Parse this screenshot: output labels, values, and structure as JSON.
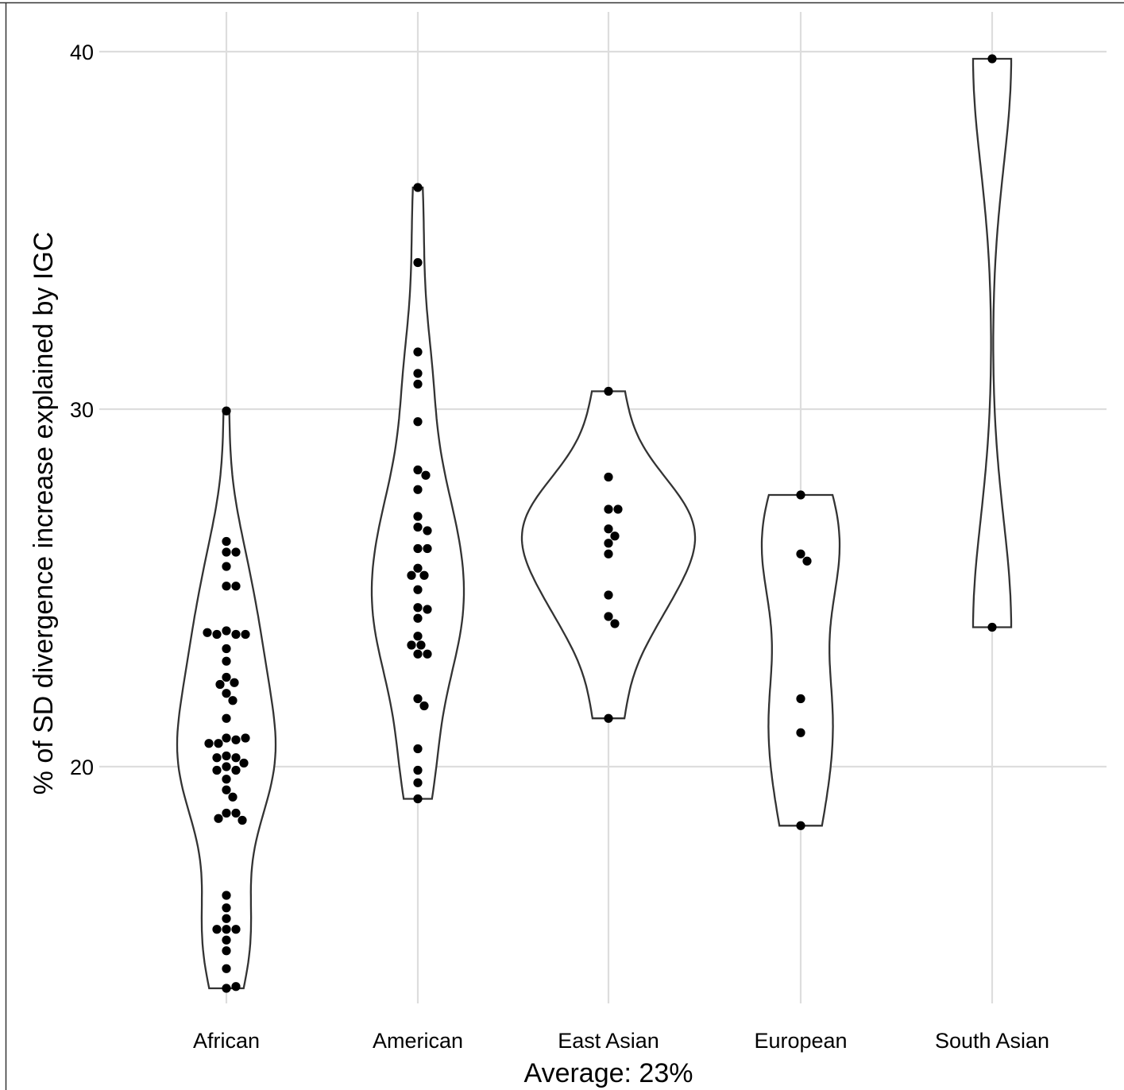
{
  "chart_data": {
    "type": "violin",
    "categories": [
      "African",
      "American",
      "East Asian",
      "European",
      "South Asian"
    ],
    "ylabel": "% of SD divergence increase explained by IGC",
    "xlabel": "Average: 23%",
    "y_ticks": [
      "20",
      "30",
      "40"
    ],
    "ylim": [
      13.7,
      41.1
    ],
    "grid": true,
    "series": [
      {
        "category": "African",
        "values": [
          29.95,
          26.3,
          26.0,
          26.0,
          25.6,
          25.05,
          25.05,
          23.8,
          23.7,
          23.7,
          23.7,
          23.75,
          23.3,
          22.95,
          22.5,
          22.35,
          22.3,
          22.05,
          21.85,
          21.35,
          20.8,
          20.75,
          20.65,
          20.65,
          20.8,
          20.3,
          20.25,
          20.25,
          20.1,
          20.0,
          19.9,
          19.9,
          19.65,
          19.35,
          19.15,
          18.7,
          18.7,
          18.55,
          18.5,
          16.4,
          16.05,
          15.75,
          15.45,
          15.45,
          15.45,
          15.15,
          14.85,
          14.35,
          13.8,
          13.85
        ]
      },
      {
        "category": "American",
        "values": [
          36.2,
          34.1,
          31.6,
          31.0,
          30.7,
          29.65,
          28.3,
          28.15,
          27.75,
          27.0,
          26.7,
          26.6,
          26.1,
          26.1,
          25.55,
          25.35,
          25.35,
          24.95,
          24.45,
          24.4,
          24.15,
          23.65,
          23.4,
          23.4,
          23.15,
          23.15,
          21.9,
          21.7,
          20.5,
          19.9,
          19.55,
          19.1
        ]
      },
      {
        "category": "East Asian",
        "values": [
          30.5,
          28.1,
          27.2,
          27.2,
          26.65,
          26.45,
          26.25,
          25.95,
          24.8,
          24.2,
          24.0,
          21.35
        ]
      },
      {
        "category": "European",
        "values": [
          27.6,
          25.95,
          25.75,
          21.9,
          20.95,
          18.35
        ]
      },
      {
        "category": "South Asian",
        "values": [
          39.8,
          23.9
        ]
      }
    ]
  }
}
